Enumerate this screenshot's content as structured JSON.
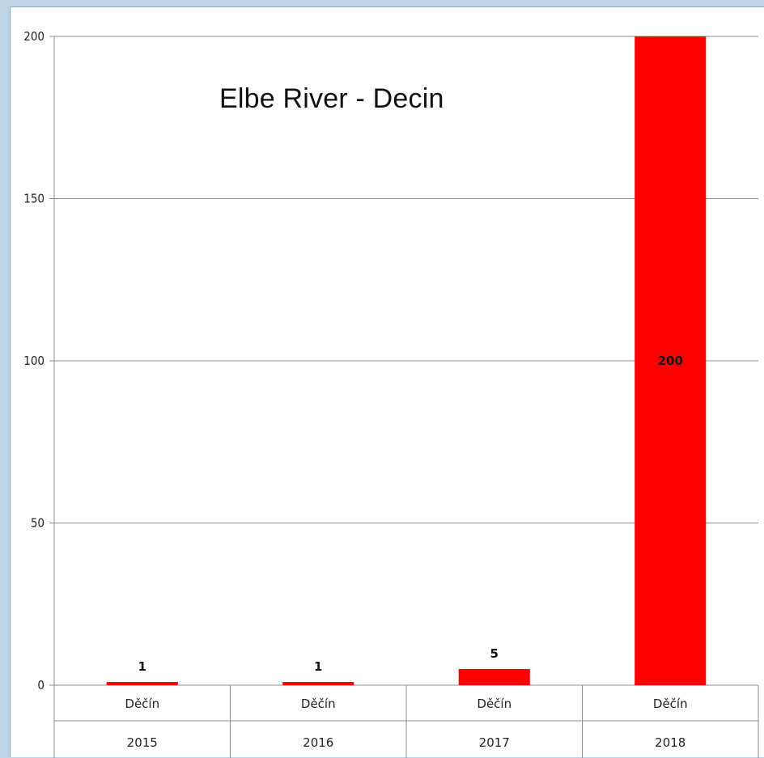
{
  "chart_data": {
    "type": "bar",
    "title": "Elbe River - Decin",
    "categories": [
      {
        "name": "Děčín",
        "year": "2015"
      },
      {
        "name": "Děčín",
        "year": "2016"
      },
      {
        "name": "Děčín",
        "year": "2017"
      },
      {
        "name": "Děčín",
        "year": "2018"
      }
    ],
    "values": [
      1,
      1,
      5,
      200
    ],
    "data_labels": [
      "1",
      "1",
      "5",
      "200"
    ],
    "ylim": [
      0,
      200
    ],
    "yticks": [
      0,
      50,
      100,
      150,
      200
    ],
    "xlabel": "",
    "ylabel": "",
    "grid": true,
    "legend": "none",
    "bar_color": "#ff0000"
  }
}
